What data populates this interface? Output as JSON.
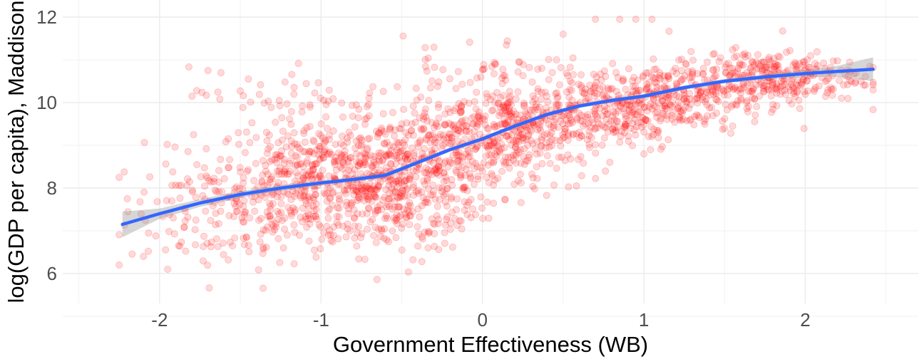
{
  "chart_data": {
    "type": "scatter",
    "title": "",
    "xlabel": "Government Effectiveness (WB)",
    "ylabel": "log(GDP per capita), Maddison",
    "xlim": [
      -2.6,
      2.7
    ],
    "ylim": [
      5.3,
      12.4
    ],
    "x_ticks": [
      -2,
      -1,
      0,
      1,
      2
    ],
    "x_tick_labels": [
      "-2",
      "-1",
      "0",
      "1",
      "2"
    ],
    "y_ticks": [
      6,
      8,
      10,
      12
    ],
    "y_tick_labels": [
      "6",
      "8",
      "10",
      "12"
    ],
    "grid": true,
    "legend": "none",
    "point_color": "#ff0000",
    "point_opacity": 0.15,
    "smooth_color": "#3366ff",
    "ribbon_color": "#999999",
    "clusters": [
      {
        "x": -1.6,
        "y": 7.5,
        "sx": 0.3,
        "sy": 0.7,
        "n": 160
      },
      {
        "x": -1.05,
        "y": 8.2,
        "sx": 0.3,
        "sy": 0.75,
        "n": 380
      },
      {
        "x": -0.6,
        "y": 8.0,
        "sx": 0.28,
        "sy": 0.75,
        "n": 400
      },
      {
        "x": -0.2,
        "y": 8.8,
        "sx": 0.3,
        "sy": 0.7,
        "n": 280
      },
      {
        "x": 0.2,
        "y": 9.4,
        "sx": 0.3,
        "sy": 0.55,
        "n": 300
      },
      {
        "x": 0.7,
        "y": 9.75,
        "sx": 0.3,
        "sy": 0.45,
        "n": 260
      },
      {
        "x": 1.2,
        "y": 10.15,
        "sx": 0.28,
        "sy": 0.35,
        "n": 240
      },
      {
        "x": 1.75,
        "y": 10.6,
        "sx": 0.3,
        "sy": 0.3,
        "n": 300
      },
      {
        "x": -1.3,
        "y": 10.2,
        "sx": 0.25,
        "sy": 0.3,
        "n": 35
      },
      {
        "x": 0.1,
        "y": 10.9,
        "sx": 0.3,
        "sy": 0.35,
        "n": 40
      }
    ],
    "outliers": [
      {
        "x": -2.25,
        "y": 6.2
      },
      {
        "x": -2.1,
        "y": 6.4
      },
      {
        "x": -1.95,
        "y": 6.1
      },
      {
        "x": -2.2,
        "y": 7.75
      },
      {
        "x": -1.7,
        "y": 10.75
      },
      {
        "x": -1.62,
        "y": 10.7
      },
      {
        "x": -1.45,
        "y": 10.55
      },
      {
        "x": 0.85,
        "y": 11.95
      },
      {
        "x": 0.95,
        "y": 11.95
      },
      {
        "x": 1.05,
        "y": 11.95
      },
      {
        "x": 0.7,
        "y": 11.95
      },
      {
        "x": 0.5,
        "y": 11.6
      },
      {
        "x": 2.4,
        "y": 10.85
      },
      {
        "x": 1.5,
        "y": 9.4
      },
      {
        "x": 1.55,
        "y": 9.45
      },
      {
        "x": 1.0,
        "y": 8.8
      }
    ],
    "smooth": {
      "x": [
        -2.23,
        -2.0,
        -1.75,
        -1.5,
        -1.25,
        -1.0,
        -0.8,
        -0.6,
        -0.5,
        -0.4,
        -0.2,
        0.0,
        0.2,
        0.4,
        0.6,
        0.8,
        1.0,
        1.25,
        1.5,
        1.75,
        2.0,
        2.2,
        2.42
      ],
      "y": [
        7.15,
        7.4,
        7.65,
        7.85,
        8.0,
        8.12,
        8.2,
        8.3,
        8.45,
        8.6,
        8.9,
        9.15,
        9.45,
        9.72,
        9.92,
        10.05,
        10.15,
        10.35,
        10.5,
        10.6,
        10.68,
        10.73,
        10.78
      ],
      "se": [
        0.3,
        0.12,
        0.09,
        0.08,
        0.07,
        0.06,
        0.06,
        0.06,
        0.06,
        0.05,
        0.05,
        0.05,
        0.05,
        0.05,
        0.05,
        0.05,
        0.05,
        0.05,
        0.05,
        0.06,
        0.08,
        0.13,
        0.28
      ]
    }
  }
}
